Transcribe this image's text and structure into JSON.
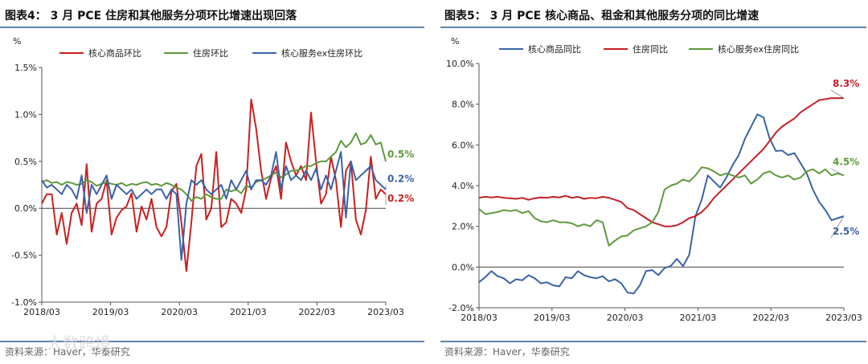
{
  "chart_data": [
    {
      "type": "line",
      "title": "图表4： 3 月 PCE 住房和其他服务分项环比增速出现回落",
      "ylabel": "%",
      "ylim": [
        -1.0,
        1.5
      ],
      "yticks": [
        "1.5%",
        "1.0%",
        "0.5%",
        "0.0%",
        "-0.5%",
        "-1.0%"
      ],
      "x_start": "2018/03",
      "x_end": "2023/03",
      "xticks": [
        "2018/03",
        "2019/03",
        "2020/03",
        "2021/03",
        "2022/03",
        "2023/03"
      ],
      "source": "资料来源：Haver，华泰研究",
      "series": [
        {
          "name": "核心商品环比",
          "color": "#cc1f1f",
          "end_label": "0.2%",
          "values": [
            0.05,
            0.15,
            0.15,
            -0.28,
            -0.05,
            -0.38,
            -0.05,
            0.05,
            -0.18,
            0.47,
            -0.25,
            0.05,
            0.1,
            0.3,
            -0.28,
            -0.1,
            -0.02,
            0.02,
            0.16,
            -0.25,
            0.02,
            -0.12,
            0.1,
            -0.2,
            -0.3,
            -0.2,
            0.18,
            0.26,
            -0.15,
            -0.67,
            -0.15,
            0.45,
            0.58,
            -0.12,
            0.0,
            0.6,
            -0.2,
            -0.15,
            0.1,
            0.05,
            -0.05,
            0.2,
            1.16,
            0.85,
            0.4,
            0.1,
            0.32,
            0.45,
            0.1,
            0.7,
            0.5,
            0.35,
            0.45,
            0.3,
            1.02,
            0.5,
            0.05,
            0.15,
            0.55,
            0.3,
            -0.2,
            0.4,
            0.5,
            -0.12,
            -0.28,
            -0.02,
            0.55,
            0.1,
            0.2,
            0.15
          ]
        },
        {
          "name": "住房环比",
          "color": "#5e9a3c",
          "end_label": "0.5%",
          "values": [
            0.28,
            0.3,
            0.27,
            0.28,
            0.25,
            0.28,
            0.27,
            0.25,
            0.26,
            0.3,
            0.28,
            0.24,
            0.26,
            0.28,
            0.26,
            0.25,
            0.27,
            0.24,
            0.26,
            0.25,
            0.27,
            0.28,
            0.25,
            0.26,
            0.24,
            0.27,
            0.25,
            0.22,
            0.2,
            0.15,
            0.08,
            0.12,
            0.1,
            0.15,
            0.12,
            0.1,
            0.1,
            0.2,
            0.18,
            0.2,
            0.16,
            0.24,
            0.22,
            0.28,
            0.3,
            0.32,
            0.35,
            0.38,
            0.33,
            0.36,
            0.4,
            0.4,
            0.42,
            0.45,
            0.45,
            0.48,
            0.5,
            0.5,
            0.55,
            0.6,
            0.72,
            0.65,
            0.7,
            0.8,
            0.68,
            0.7,
            0.78,
            0.68,
            0.7,
            0.5
          ]
        },
        {
          "name": "核心服务ex住房环比",
          "color": "#3a63a8",
          "end_label": "0.2%",
          "values": [
            0.3,
            0.22,
            0.25,
            0.2,
            0.15,
            0.25,
            0.2,
            0.1,
            0.35,
            -0.05,
            0.25,
            0.15,
            0.25,
            0.35,
            0.1,
            0.25,
            0.2,
            0.15,
            0.2,
            0.1,
            0.15,
            0.2,
            0.15,
            0.2,
            0.2,
            0.1,
            0.2,
            0.15,
            -0.55,
            0.05,
            0.3,
            0.25,
            0.3,
            0.2,
            0.15,
            0.2,
            0.25,
            0.1,
            0.3,
            0.2,
            0.3,
            0.4,
            0.2,
            0.3,
            0.3,
            0.25,
            0.35,
            0.6,
            0.2,
            0.45,
            0.3,
            0.35,
            0.3,
            0.4,
            0.3,
            0.42,
            0.2,
            0.35,
            0.2,
            0.4,
            0.6,
            -0.1,
            0.5,
            0.3,
            0.35,
            0.4,
            0.45,
            0.3,
            0.25,
            0.2
          ]
        }
      ]
    },
    {
      "type": "line",
      "title": "图表5： 3 月 PCE 核心商品、租金和其他服务分项的同比增速",
      "ylabel": "%",
      "ylim": [
        -2.0,
        10.0
      ],
      "yticks": [
        "10.0%",
        "8.0%",
        "6.0%",
        "4.0%",
        "2.0%",
        "0.0%",
        "-2.0%"
      ],
      "x_start": "2018/03",
      "x_end": "2023/03",
      "xticks": [
        "2018/03",
        "2019/03",
        "2020/03",
        "2021/03",
        "2022/03",
        "2023/03"
      ],
      "source": "资料来源：Haver，华泰研究",
      "series": [
        {
          "name": "核心商品同比",
          "color": "#3a63a8",
          "end_label": "2.5%",
          "values": [
            -0.75,
            -0.5,
            -0.2,
            -0.45,
            -0.55,
            -0.8,
            -0.6,
            -0.65,
            -0.4,
            -0.55,
            -0.8,
            -0.75,
            -0.9,
            -0.95,
            -0.5,
            -0.55,
            -0.2,
            -0.4,
            -0.5,
            -0.55,
            -0.45,
            -0.7,
            -0.6,
            -0.8,
            -1.25,
            -1.3,
            -0.9,
            -0.2,
            -0.15,
            -0.4,
            -0.05,
            0.05,
            0.4,
            0.05,
            0.6,
            2.5,
            3.3,
            4.5,
            4.2,
            3.9,
            4.4,
            5.0,
            5.5,
            6.3,
            6.9,
            7.5,
            7.35,
            6.3,
            5.7,
            5.72,
            5.5,
            5.6,
            5.1,
            4.6,
            3.8,
            3.2,
            2.8,
            2.3,
            2.4,
            2.5
          ]
        },
        {
          "name": "住房同比",
          "color": "#c62026",
          "end_label": "8.3%",
          "values": [
            3.4,
            3.45,
            3.42,
            3.45,
            3.4,
            3.38,
            3.35,
            3.4,
            3.3,
            3.38,
            3.42,
            3.4,
            3.45,
            3.42,
            3.5,
            3.4,
            3.45,
            3.35,
            3.4,
            3.38,
            3.45,
            3.4,
            3.3,
            3.2,
            2.9,
            2.8,
            2.6,
            2.4,
            2.2,
            2.1,
            2.0,
            2.0,
            2.05,
            2.2,
            2.4,
            2.5,
            2.7,
            3.0,
            3.4,
            3.7,
            4.0,
            4.3,
            4.6,
            4.9,
            5.2,
            5.5,
            5.8,
            6.2,
            6.6,
            6.9,
            7.1,
            7.3,
            7.6,
            7.8,
            8.0,
            8.2,
            8.25,
            8.3,
            8.3,
            8.3
          ]
        },
        {
          "name": "核心服务ex住房同比",
          "color": "#5e9a3c",
          "end_label": "4.5%",
          "values": [
            2.85,
            2.6,
            2.65,
            2.7,
            2.8,
            2.75,
            2.8,
            2.65,
            2.75,
            2.4,
            2.25,
            2.2,
            2.3,
            2.2,
            2.2,
            2.15,
            2.0,
            2.1,
            2.0,
            2.3,
            2.2,
            1.05,
            1.3,
            1.5,
            1.55,
            1.8,
            1.9,
            2.0,
            2.2,
            2.7,
            3.8,
            4.0,
            4.1,
            4.3,
            4.2,
            4.5,
            4.9,
            4.85,
            4.7,
            4.5,
            4.6,
            4.5,
            4.4,
            4.5,
            4.1,
            4.3,
            4.6,
            4.7,
            4.5,
            4.4,
            4.5,
            4.3,
            4.4,
            4.7,
            4.8,
            4.6,
            4.8,
            4.5,
            4.6,
            4.5
          ]
        }
      ]
    }
  ],
  "watermark": "大数跨境"
}
